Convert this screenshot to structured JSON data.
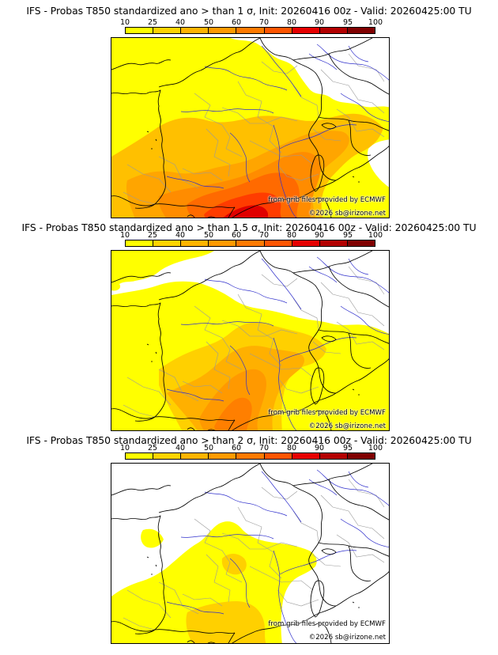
{
  "scale": {
    "labels": [
      "10",
      "25",
      "40",
      "50",
      "60",
      "70",
      "80",
      "90",
      "95",
      "100"
    ],
    "colors": [
      "#ffff00",
      "#ffd400",
      "#ffb400",
      "#ff9a00",
      "#ff7a00",
      "#ff5500",
      "#e60000",
      "#b30000",
      "#800000",
      "#500000"
    ]
  },
  "panels": [
    {
      "title": "IFS - Probas T850  standardized ano > than 1 σ, Init: 20260416 00z - Valid: 20260425:00 TU",
      "credit_source": "from grib files provided by ECMWF",
      "credit_copyright": "©2026 sb@irizone.net",
      "peak_probability_band": "80-90"
    },
    {
      "title": "IFS - Probas T850  standardized ano > than 1.5 σ, Init: 20260416 00z - Valid: 20260425:00 TU",
      "credit_source": "from grib files provided by ECMWF",
      "credit_copyright": "©2026 sb@irizone.net",
      "peak_probability_band": "60-70"
    },
    {
      "title": "IFS - Probas T850  standardized ano > than 2 σ, Init: 20260416 00z - Valid: 20260425:00 TU",
      "credit_source": "from grib files provided by ECMWF",
      "credit_copyright": "©2026 sb@irizone.net",
      "peak_probability_band": "25-40"
    }
  ]
}
